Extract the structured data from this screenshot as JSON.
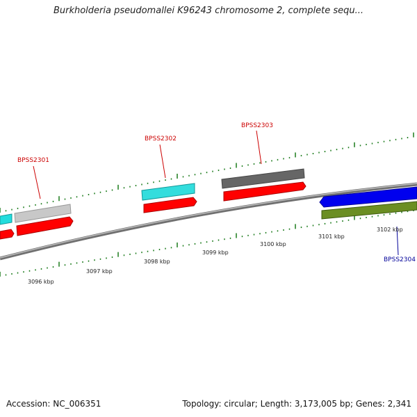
{
  "title": "Burkholderia pseudomallei K96243 chromosome 2, complete sequ...",
  "footer": {
    "accession": "Accession: NC_006351",
    "summary": "Topology: circular; Length: 3,173,005 bp; Genes: 2,341"
  },
  "scale_labels": [
    "3096 kbp",
    "3097 kbp",
    "3098 kbp",
    "3099 kbp",
    "3100 kbp",
    "3101 kbp",
    "3102 kbp"
  ],
  "gene_labels": [
    {
      "text": "BPSS2301",
      "color": "#cc0000"
    },
    {
      "text": "BPSS2302",
      "color": "#cc0000"
    },
    {
      "text": "BPSS2303",
      "color": "#cc0000"
    },
    {
      "text": "BPSS2304",
      "color": "#000099"
    }
  ],
  "colors": {
    "backbone": "#8a8a8a",
    "tick": "#1a7a1a",
    "cds": "#ff0000",
    "cyan_feature": "#22cccc",
    "gray_feature": "#bbbbbb",
    "dark_feature": "#666666",
    "blue_feature": "#0000ee",
    "olive_feature": "#6b8e23"
  }
}
